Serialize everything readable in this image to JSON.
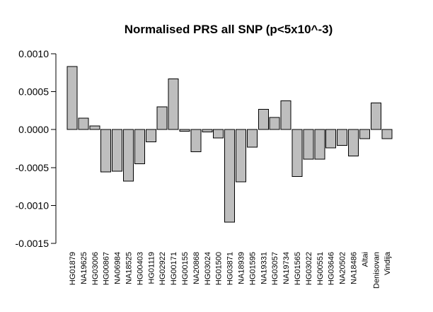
{
  "chart_data": {
    "type": "bar",
    "title": "Normalised PRS all SNP (p<5x10^-3)",
    "xlabel": "",
    "ylabel": "",
    "ylim": [
      -0.0015,
      0.001
    ],
    "yticks": [
      0.001,
      0.0005,
      0.0,
      -0.0005,
      -0.001,
      -0.0015
    ],
    "ytick_labels": [
      "0.0010",
      "0.0005",
      "0.0000",
      "-0.0005",
      "-0.0010",
      "-0.0015"
    ],
    "grid": false,
    "bar_color": "#bebebe",
    "categories": [
      "HG01879",
      "NA19625",
      "HG03006",
      "HG00867",
      "NA06984",
      "NA18525",
      "HG00403",
      "HG01119",
      "HG02922",
      "HG00171",
      "HG00155",
      "NA20868",
      "HG03024",
      "HG01500",
      "HG03871",
      "NA18939",
      "HG01595",
      "NA19331",
      "HG03057",
      "NA19734",
      "HG01565",
      "HG03022",
      "HG00551",
      "HG03646",
      "NA20502",
      "NA18486",
      "Altai",
      "Denisovan",
      "Vindija"
    ],
    "values": [
      0.00083,
      0.00015,
      5e-05,
      -0.00056,
      -0.00055,
      -0.00068,
      -0.00045,
      -0.00016,
      0.0003,
      0.00067,
      -2e-05,
      -0.00029,
      -3e-05,
      -0.00011,
      -0.00122,
      -0.00069,
      -0.00023,
      0.00027,
      0.00016,
      0.00038,
      -0.00062,
      -0.00039,
      -0.00039,
      -0.00024,
      -0.00021,
      -0.00035,
      -0.00012,
      0.00035,
      -0.00012
    ]
  }
}
